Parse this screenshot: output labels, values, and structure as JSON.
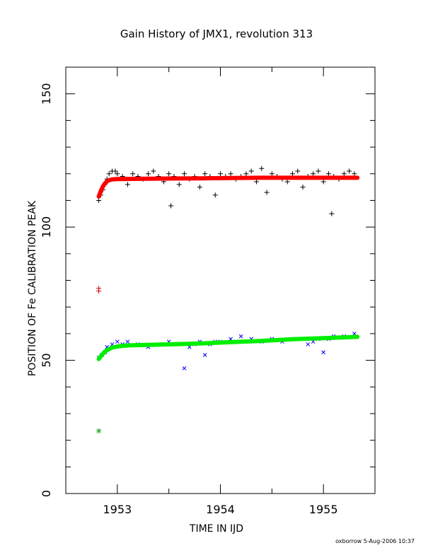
{
  "chart_data": {
    "type": "scatter",
    "title": "Gain History of JMX1, revolution 313",
    "xlabel": "TIME IN IJD",
    "ylabel": "POSITION OF Fe CALIBRATION PEAK",
    "xlim": [
      1952.5,
      1955.5
    ],
    "ylim": [
      0,
      160
    ],
    "x_ticks": [
      1953,
      1954,
      1955
    ],
    "x_tick_labels": [
      "1953",
      "1954",
      "1955"
    ],
    "y_ticks": [
      0,
      50,
      100,
      150
    ],
    "y_tick_labels": [
      "0",
      "50",
      "100",
      "150"
    ],
    "grid": false,
    "footer": "oxborrow  5-Aug-2006 10:37",
    "colors": {
      "upper_points": "#000000",
      "upper_fit": "#ff0000",
      "lower_points": "#0000ff",
      "lower_fit": "#00ee00",
      "early_upper": "#cc0000",
      "early_lower": "#33aa33"
    },
    "series": [
      {
        "marker": "plus",
        "color": "#000000",
        "x": [
          1952.82,
          1952.84,
          1952.86,
          1952.88,
          1952.9,
          1952.92,
          1952.95,
          1952.98,
          1953.0,
          1953.05,
          1953.1,
          1953.15,
          1953.2,
          1953.25,
          1953.3,
          1953.35,
          1953.4,
          1953.45,
          1953.5,
          1953.52,
          1953.55,
          1953.6,
          1953.65,
          1953.7,
          1953.75,
          1953.8,
          1953.85,
          1953.9,
          1953.95,
          1954.0,
          1954.05,
          1954.1,
          1954.15,
          1954.2,
          1954.25,
          1954.3,
          1954.35,
          1954.4,
          1954.45,
          1954.5,
          1954.55,
          1954.6,
          1954.65,
          1954.7,
          1954.75,
          1954.8,
          1954.85,
          1954.9,
          1954.95,
          1955.0,
          1955.05,
          1955.08,
          1955.1,
          1955.15,
          1955.2,
          1955.25,
          1955.3
        ],
        "y": [
          110,
          112,
          114,
          116,
          118,
          120,
          121,
          121,
          120,
          119,
          116,
          120,
          119,
          118,
          120,
          121,
          119,
          117,
          120,
          108,
          119,
          116,
          120,
          118,
          119,
          115,
          120,
          119,
          112,
          120,
          119,
          120,
          118,
          119,
          120,
          121,
          117,
          122,
          113,
          120,
          119,
          118,
          117,
          120,
          121,
          115,
          119,
          120,
          121,
          117,
          120,
          105,
          119,
          118,
          120,
          121,
          120
        ]
      },
      {
        "marker": "line",
        "color": "#ff0000",
        "x": [
          1952.82,
          1952.84,
          1952.86,
          1952.88,
          1952.9,
          1952.92,
          1952.95,
          1953.0,
          1953.2,
          1953.5,
          1953.8,
          1954.1,
          1954.4,
          1954.7,
          1955.0,
          1955.33
        ],
        "y": [
          111.5,
          113.5,
          115.2,
          116.4,
          117.2,
          117.6,
          117.9,
          118.0,
          118.1,
          118.2,
          118.3,
          118.4,
          118.5,
          118.5,
          118.5,
          118.5
        ]
      },
      {
        "marker": "cross",
        "color": "#0000ff",
        "x": [
          1952.82,
          1952.85,
          1952.88,
          1952.9,
          1952.95,
          1953.0,
          1953.05,
          1953.1,
          1953.2,
          1953.3,
          1953.4,
          1953.5,
          1953.6,
          1953.65,
          1953.7,
          1953.75,
          1953.8,
          1953.85,
          1953.9,
          1953.95,
          1954.0,
          1954.1,
          1954.2,
          1954.3,
          1954.4,
          1954.5,
          1954.6,
          1954.7,
          1954.8,
          1954.85,
          1954.9,
          1954.95,
          1955.0,
          1955.05,
          1955.1,
          1955.2,
          1955.3
        ],
        "y": [
          51,
          52,
          53,
          55,
          56,
          57,
          56,
          57,
          56,
          55,
          56,
          57,
          56,
          47,
          55,
          56,
          57,
          52,
          56,
          57,
          57,
          58,
          59,
          58,
          57,
          58,
          57,
          58,
          58,
          56,
          57,
          58,
          53,
          58,
          59,
          59,
          60
        ]
      },
      {
        "marker": "line",
        "color": "#00ee00",
        "x": [
          1952.82,
          1952.85,
          1952.88,
          1952.92,
          1952.95,
          1953.0,
          1953.1,
          1953.3,
          1953.5,
          1953.8,
          1954.1,
          1954.4,
          1954.7,
          1955.0,
          1955.33
        ],
        "y": [
          50.5,
          52.0,
          53.3,
          54.2,
          54.8,
          55.2,
          55.6,
          55.8,
          56.0,
          56.3,
          56.8,
          57.3,
          57.9,
          58.3,
          58.8
        ]
      },
      {
        "marker": "plus",
        "color": "#cc0000",
        "x": [
          1952.82,
          1952.82
        ],
        "y": [
          77,
          76
        ]
      },
      {
        "marker": "star",
        "color": "#33aa33",
        "x": [
          1952.82
        ],
        "y": [
          23.5
        ]
      }
    ]
  }
}
